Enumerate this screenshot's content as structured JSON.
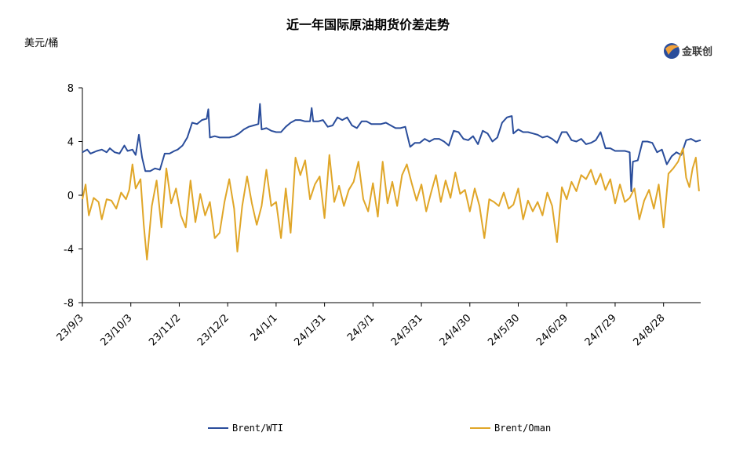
{
  "chart_data": {
    "type": "line",
    "title": "近一年国际原油期货价差走势",
    "ylabel": "美元/桶",
    "ylim": [
      -8,
      8
    ],
    "yticks": [
      -8,
      -4,
      0,
      4,
      8
    ],
    "xticks": [
      "23/9/3",
      "23/10/3",
      "23/11/2",
      "23/12/2",
      "24/1/1",
      "24/1/31",
      "24/3/1",
      "24/3/31",
      "24/4/30",
      "24/5/30",
      "24/6/29",
      "24/7/29",
      "24/8/28"
    ],
    "x_start": "2023-09-03",
    "x_end": "2024-08-28",
    "legend_position": "bottom",
    "grid": false,
    "series": [
      {
        "name": "Brent/WTI",
        "color": "#2a4d9b",
        "points": [
          [
            "2023-09-03",
            3.2
          ],
          [
            "2023-09-06",
            3.4
          ],
          [
            "2023-09-08",
            3.1
          ],
          [
            "2023-09-12",
            3.3
          ],
          [
            "2023-09-15",
            3.4
          ],
          [
            "2023-09-18",
            3.2
          ],
          [
            "2023-09-20",
            3.5
          ],
          [
            "2023-09-23",
            3.2
          ],
          [
            "2023-09-26",
            3.1
          ],
          [
            "2023-09-29",
            3.7
          ],
          [
            "2023-10-01",
            3.3
          ],
          [
            "2023-10-04",
            3.4
          ],
          [
            "2023-10-06",
            3.0
          ],
          [
            "2023-10-08",
            4.5
          ],
          [
            "2023-10-10",
            2.8
          ],
          [
            "2023-10-12",
            1.8
          ],
          [
            "2023-10-15",
            1.8
          ],
          [
            "2023-10-18",
            2.0
          ],
          [
            "2023-10-21",
            1.9
          ],
          [
            "2023-10-24",
            3.1
          ],
          [
            "2023-10-27",
            3.1
          ],
          [
            "2023-10-30",
            3.3
          ],
          [
            "2023-11-01",
            3.4
          ],
          [
            "2023-11-04",
            3.7
          ],
          [
            "2023-11-07",
            4.3
          ],
          [
            "2023-11-10",
            5.4
          ],
          [
            "2023-11-13",
            5.3
          ],
          [
            "2023-11-16",
            5.6
          ],
          [
            "2023-11-19",
            5.7
          ],
          [
            "2023-11-20",
            6.4
          ],
          [
            "2023-11-21",
            4.3
          ],
          [
            "2023-11-24",
            4.4
          ],
          [
            "2023-11-27",
            4.3
          ],
          [
            "2023-11-30",
            4.3
          ],
          [
            "2023-12-03",
            4.3
          ],
          [
            "2023-12-06",
            4.4
          ],
          [
            "2023-12-09",
            4.6
          ],
          [
            "2023-12-12",
            4.9
          ],
          [
            "2023-12-15",
            5.1
          ],
          [
            "2023-12-18",
            5.2
          ],
          [
            "2023-12-21",
            5.3
          ],
          [
            "2023-12-22",
            6.8
          ],
          [
            "2023-12-23",
            4.9
          ],
          [
            "2023-12-26",
            5.0
          ],
          [
            "2023-12-29",
            4.8
          ],
          [
            "2024-01-01",
            4.7
          ],
          [
            "2024-01-04",
            4.7
          ],
          [
            "2024-01-07",
            5.1
          ],
          [
            "2024-01-10",
            5.4
          ],
          [
            "2024-01-13",
            5.6
          ],
          [
            "2024-01-16",
            5.6
          ],
          [
            "2024-01-19",
            5.5
          ],
          [
            "2024-01-22",
            5.5
          ],
          [
            "2024-01-23",
            6.5
          ],
          [
            "2024-01-24",
            5.5
          ],
          [
            "2024-01-27",
            5.5
          ],
          [
            "2024-01-30",
            5.6
          ],
          [
            "2024-02-02",
            5.1
          ],
          [
            "2024-02-05",
            5.2
          ],
          [
            "2024-02-08",
            5.8
          ],
          [
            "2024-02-11",
            5.6
          ],
          [
            "2024-02-14",
            5.8
          ],
          [
            "2024-02-17",
            5.2
          ],
          [
            "2024-02-20",
            5.0
          ],
          [
            "2024-02-23",
            5.5
          ],
          [
            "2024-02-26",
            5.5
          ],
          [
            "2024-02-29",
            5.3
          ],
          [
            "2024-03-03",
            5.3
          ],
          [
            "2024-03-06",
            5.3
          ],
          [
            "2024-03-09",
            5.4
          ],
          [
            "2024-03-12",
            5.2
          ],
          [
            "2024-03-15",
            5.0
          ],
          [
            "2024-03-18",
            5.0
          ],
          [
            "2024-03-21",
            5.1
          ],
          [
            "2024-03-24",
            3.6
          ],
          [
            "2024-03-27",
            3.9
          ],
          [
            "2024-03-30",
            3.9
          ],
          [
            "2024-04-02",
            4.2
          ],
          [
            "2024-04-05",
            4.0
          ],
          [
            "2024-04-08",
            4.2
          ],
          [
            "2024-04-11",
            4.2
          ],
          [
            "2024-04-14",
            4.0
          ],
          [
            "2024-04-17",
            3.7
          ],
          [
            "2024-04-20",
            4.8
          ],
          [
            "2024-04-23",
            4.7
          ],
          [
            "2024-04-26",
            4.2
          ],
          [
            "2024-04-29",
            4.1
          ],
          [
            "2024-05-02",
            4.4
          ],
          [
            "2024-05-05",
            3.8
          ],
          [
            "2024-05-08",
            4.8
          ],
          [
            "2024-05-11",
            4.6
          ],
          [
            "2024-05-14",
            4.0
          ],
          [
            "2024-05-17",
            4.3
          ],
          [
            "2024-05-20",
            5.4
          ],
          [
            "2024-05-23",
            5.8
          ],
          [
            "2024-05-26",
            5.9
          ],
          [
            "2024-05-27",
            4.6
          ],
          [
            "2024-05-30",
            4.9
          ],
          [
            "2024-06-02",
            4.7
          ],
          [
            "2024-06-05",
            4.7
          ],
          [
            "2024-06-08",
            4.6
          ],
          [
            "2024-06-11",
            4.5
          ],
          [
            "2024-06-14",
            4.3
          ],
          [
            "2024-06-17",
            4.4
          ],
          [
            "2024-06-20",
            4.2
          ],
          [
            "2024-06-23",
            3.9
          ],
          [
            "2024-06-26",
            4.7
          ],
          [
            "2024-06-29",
            4.7
          ],
          [
            "2024-07-02",
            4.1
          ],
          [
            "2024-07-05",
            4.0
          ],
          [
            "2024-07-08",
            4.2
          ],
          [
            "2024-07-11",
            3.8
          ],
          [
            "2024-07-14",
            3.9
          ],
          [
            "2024-07-17",
            4.1
          ],
          [
            "2024-07-20",
            4.7
          ],
          [
            "2024-07-23",
            3.5
          ],
          [
            "2024-07-26",
            3.5
          ],
          [
            "2024-07-29",
            3.3
          ],
          [
            "2024-08-01",
            3.3
          ],
          [
            "2024-08-04",
            3.3
          ],
          [
            "2024-08-07",
            3.2
          ],
          [
            "2024-08-08",
            0.3
          ],
          [
            "2024-08-09",
            2.5
          ],
          [
            "2024-08-12",
            2.6
          ],
          [
            "2024-08-15",
            4.0
          ],
          [
            "2024-08-18",
            4.0
          ],
          [
            "2024-08-21",
            3.9
          ],
          [
            "2024-08-24",
            3.2
          ],
          [
            "2024-08-27",
            3.4
          ],
          [
            "2024-08-30",
            2.3
          ],
          [
            "2024-09-02",
            2.9
          ],
          [
            "2024-09-05",
            3.2
          ],
          [
            "2024-09-08",
            3.0
          ],
          [
            "2024-09-11",
            4.1
          ],
          [
            "2024-09-14",
            4.2
          ],
          [
            "2024-09-17",
            4.0
          ],
          [
            "2024-09-20",
            4.1
          ]
        ]
      },
      {
        "name": "Brent/Oman",
        "color": "#e0a628",
        "points": [
          [
            "2023-09-03",
            -0.3
          ],
          [
            "2023-09-05",
            0.8
          ],
          [
            "2023-09-07",
            -1.5
          ],
          [
            "2023-09-10",
            -0.2
          ],
          [
            "2023-09-13",
            -0.5
          ],
          [
            "2023-09-15",
            -1.8
          ],
          [
            "2023-09-18",
            -0.3
          ],
          [
            "2023-09-21",
            -0.4
          ],
          [
            "2023-09-24",
            -1.0
          ],
          [
            "2023-09-27",
            0.2
          ],
          [
            "2023-09-30",
            -0.3
          ],
          [
            "2023-10-02",
            0.4
          ],
          [
            "2023-10-04",
            2.3
          ],
          [
            "2023-10-06",
            0.5
          ],
          [
            "2023-10-09",
            1.2
          ],
          [
            "2023-10-11",
            -2.2
          ],
          [
            "2023-10-13",
            -4.8
          ],
          [
            "2023-10-16",
            -0.8
          ],
          [
            "2023-10-19",
            1.1
          ],
          [
            "2023-10-22",
            -2.4
          ],
          [
            "2023-10-25",
            2.0
          ],
          [
            "2023-10-28",
            -0.6
          ],
          [
            "2023-10-31",
            0.5
          ],
          [
            "2023-11-03",
            -1.5
          ],
          [
            "2023-11-06",
            -2.4
          ],
          [
            "2023-11-09",
            1.1
          ],
          [
            "2023-11-12",
            -2.0
          ],
          [
            "2023-11-15",
            0.1
          ],
          [
            "2023-11-18",
            -1.5
          ],
          [
            "2023-11-21",
            -0.5
          ],
          [
            "2023-11-24",
            -3.2
          ],
          [
            "2023-11-27",
            -2.8
          ],
          [
            "2023-11-30",
            -0.5
          ],
          [
            "2023-12-03",
            1.2
          ],
          [
            "2023-12-06",
            -1.0
          ],
          [
            "2023-12-08",
            -4.2
          ],
          [
            "2023-12-11",
            -0.8
          ],
          [
            "2023-12-14",
            1.4
          ],
          [
            "2023-12-17",
            -0.6
          ],
          [
            "2023-12-20",
            -2.2
          ],
          [
            "2023-12-23",
            -0.8
          ],
          [
            "2023-12-26",
            1.9
          ],
          [
            "2023-12-29",
            -0.8
          ],
          [
            "2024-01-01",
            -0.5
          ],
          [
            "2024-01-04",
            -3.2
          ],
          [
            "2024-01-07",
            0.5
          ],
          [
            "2024-01-10",
            -2.8
          ],
          [
            "2024-01-13",
            2.8
          ],
          [
            "2024-01-16",
            1.5
          ],
          [
            "2024-01-19",
            2.6
          ],
          [
            "2024-01-22",
            -0.3
          ],
          [
            "2024-01-25",
            0.8
          ],
          [
            "2024-01-28",
            1.4
          ],
          [
            "2024-01-31",
            -1.7
          ],
          [
            "2024-02-03",
            3.0
          ],
          [
            "2024-02-06",
            -0.5
          ],
          [
            "2024-02-09",
            0.7
          ],
          [
            "2024-02-12",
            -0.8
          ],
          [
            "2024-02-15",
            0.4
          ],
          [
            "2024-02-18",
            1.0
          ],
          [
            "2024-02-21",
            2.5
          ],
          [
            "2024-02-24",
            -0.3
          ],
          [
            "2024-02-27",
            -1.2
          ],
          [
            "2024-03-01",
            0.9
          ],
          [
            "2024-03-04",
            -1.6
          ],
          [
            "2024-03-07",
            2.5
          ],
          [
            "2024-03-10",
            -0.6
          ],
          [
            "2024-03-13",
            1.0
          ],
          [
            "2024-03-16",
            -0.8
          ],
          [
            "2024-03-19",
            1.5
          ],
          [
            "2024-03-22",
            2.3
          ],
          [
            "2024-03-25",
            0.9
          ],
          [
            "2024-03-28",
            -0.4
          ],
          [
            "2024-03-31",
            0.8
          ],
          [
            "2024-04-03",
            -1.2
          ],
          [
            "2024-04-06",
            0.2
          ],
          [
            "2024-04-09",
            1.5
          ],
          [
            "2024-04-12",
            -0.5
          ],
          [
            "2024-04-15",
            1.1
          ],
          [
            "2024-04-18",
            -0.2
          ],
          [
            "2024-04-21",
            1.7
          ],
          [
            "2024-04-24",
            0.1
          ],
          [
            "2024-04-27",
            0.4
          ],
          [
            "2024-04-30",
            -1.2
          ],
          [
            "2024-05-03",
            0.5
          ],
          [
            "2024-05-06",
            -0.8
          ],
          [
            "2024-05-09",
            -3.2
          ],
          [
            "2024-05-12",
            -0.3
          ],
          [
            "2024-05-15",
            -0.5
          ],
          [
            "2024-05-18",
            -0.8
          ],
          [
            "2024-05-21",
            0.2
          ],
          [
            "2024-05-24",
            -1.0
          ],
          [
            "2024-05-27",
            -0.7
          ],
          [
            "2024-05-30",
            0.5
          ],
          [
            "2024-06-02",
            -1.8
          ],
          [
            "2024-06-05",
            -0.4
          ],
          [
            "2024-06-08",
            -1.2
          ],
          [
            "2024-06-11",
            -0.5
          ],
          [
            "2024-06-14",
            -1.5
          ],
          [
            "2024-06-17",
            0.2
          ],
          [
            "2024-06-20",
            -0.8
          ],
          [
            "2024-06-23",
            -3.5
          ],
          [
            "2024-06-26",
            0.6
          ],
          [
            "2024-06-29",
            -0.3
          ],
          [
            "2024-07-02",
            1.0
          ],
          [
            "2024-07-05",
            0.3
          ],
          [
            "2024-07-08",
            1.5
          ],
          [
            "2024-07-11",
            1.2
          ],
          [
            "2024-07-14",
            1.9
          ],
          [
            "2024-07-17",
            0.8
          ],
          [
            "2024-07-20",
            1.6
          ],
          [
            "2024-07-23",
            0.4
          ],
          [
            "2024-07-26",
            1.2
          ],
          [
            "2024-07-29",
            -0.6
          ],
          [
            "2024-08-01",
            0.8
          ],
          [
            "2024-08-04",
            -0.5
          ],
          [
            "2024-08-07",
            -0.2
          ],
          [
            "2024-08-10",
            0.5
          ],
          [
            "2024-08-13",
            -1.8
          ],
          [
            "2024-08-16",
            -0.4
          ],
          [
            "2024-08-19",
            0.4
          ],
          [
            "2024-08-22",
            -1.0
          ],
          [
            "2024-08-25",
            0.8
          ],
          [
            "2024-08-28",
            -2.4
          ],
          [
            "2024-08-31",
            1.6
          ],
          [
            "2024-09-03",
            2.0
          ],
          [
            "2024-09-06",
            2.5
          ],
          [
            "2024-09-09",
            3.5
          ],
          [
            "2024-09-11",
            1.3
          ],
          [
            "2024-09-13",
            0.6
          ],
          [
            "2024-09-15",
            2.0
          ],
          [
            "2024-09-17",
            2.8
          ],
          [
            "2024-09-19",
            0.3
          ]
        ]
      }
    ]
  },
  "logo": {
    "text": "金联创"
  }
}
